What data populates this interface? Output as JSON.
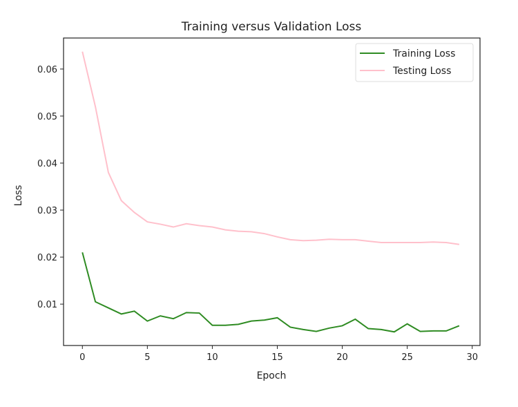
{
  "chart_data": {
    "type": "line",
    "title": "Training versus Validation Loss",
    "xlabel": "Epoch",
    "ylabel": "Loss",
    "xlim": [
      -1.45,
      30.6
    ],
    "ylim": [
      0.0012,
      0.0666
    ],
    "xticks": [
      0,
      5,
      10,
      15,
      20,
      25,
      30
    ],
    "xtick_labels": [
      "0",
      "5",
      "10",
      "15",
      "20",
      "25",
      "30"
    ],
    "yticks": [
      0.01,
      0.02,
      0.03,
      0.04,
      0.05,
      0.06
    ],
    "ytick_labels": [
      "0.01",
      "0.02",
      "0.03",
      "0.04",
      "0.05",
      "0.06"
    ],
    "grid": false,
    "legend_position": "top-right",
    "x": [
      0,
      1,
      2,
      3,
      4,
      5,
      6,
      7,
      8,
      9,
      10,
      11,
      12,
      13,
      14,
      15,
      16,
      17,
      18,
      19,
      20,
      21,
      22,
      23,
      24,
      25,
      26,
      27,
      28,
      29
    ],
    "series": [
      {
        "name": "Training Loss",
        "color": "#2e8b22",
        "values": [
          0.021,
          0.0105,
          0.0092,
          0.0079,
          0.0085,
          0.0064,
          0.0075,
          0.0069,
          0.0082,
          0.0081,
          0.0055,
          0.0055,
          0.0057,
          0.0064,
          0.0066,
          0.0071,
          0.0051,
          0.0046,
          0.0042,
          0.0049,
          0.0054,
          0.0068,
          0.0048,
          0.0046,
          0.0041,
          0.0058,
          0.0042,
          0.0043,
          0.0043,
          0.0054
        ]
      },
      {
        "name": "Testing Loss",
        "color": "#ffc0cb",
        "values": [
          0.0637,
          0.052,
          0.038,
          0.032,
          0.0295,
          0.0275,
          0.027,
          0.0264,
          0.0271,
          0.0267,
          0.0264,
          0.0258,
          0.0255,
          0.0254,
          0.025,
          0.0243,
          0.0237,
          0.0235,
          0.0236,
          0.0238,
          0.0237,
          0.0237,
          0.0234,
          0.0231,
          0.0231,
          0.0231,
          0.0231,
          0.0232,
          0.0231,
          0.0227
        ]
      }
    ]
  }
}
